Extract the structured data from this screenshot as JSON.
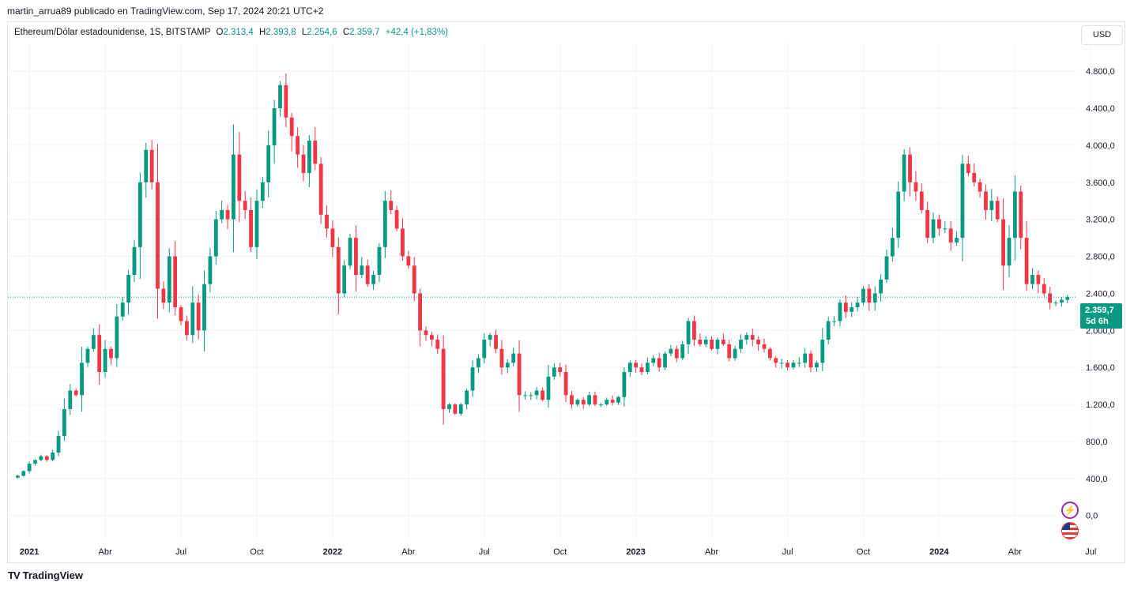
{
  "header": {
    "publisher": "martin_arrua89 publicado en TradingView.com, Sep 17, 2024 20:21 UTC+2"
  },
  "legend": {
    "symbol": "Ethereum/Dólar estadounidense, 1S, BITSTAMP",
    "o_label": "O",
    "o_value": "2.313,4",
    "h_label": "H",
    "h_value": "2.393,8",
    "l_label": "L",
    "l_value": "2.254,6",
    "c_label": "C",
    "c_value": "2.359,7",
    "change": "+42,4 (+1,83%)"
  },
  "currency_button": "USD",
  "last_price": {
    "price": "2.359,7",
    "countdown": "5d 6h",
    "value": 2359.7
  },
  "brand": {
    "name": "TradingView",
    "logo": "TV"
  },
  "icons": [
    "lightning-icon",
    "us-flag-icon"
  ],
  "colors": {
    "up": "#089981",
    "down": "#f23645",
    "grid": "#f0f3fa",
    "text": "#131722"
  },
  "chart_data": {
    "type": "candlestick",
    "timeframe": "1W",
    "ylim": [
      -250,
      5100
    ],
    "y_ticks": [
      0,
      400,
      800,
      1200,
      1600,
      2000,
      2400,
      2800,
      3200,
      3600,
      4000,
      4400,
      4800
    ],
    "y_tick_labels": [
      "0,0",
      "400,0",
      "800,0",
      "1.200,0",
      "1.600,0",
      "2.000,0",
      "2.400,0",
      "2.800,0",
      "3.200,0",
      "3.600,0",
      "4.000,0",
      "4.400,0",
      "4.800,0"
    ],
    "x_ticks": [
      {
        "label": "2021",
        "week": 3,
        "bold": true
      },
      {
        "label": "Abr",
        "week": 16,
        "bold": false
      },
      {
        "label": "Jul",
        "week": 29,
        "bold": false
      },
      {
        "label": "Oct",
        "week": 42,
        "bold": false
      },
      {
        "label": "2022",
        "week": 55,
        "bold": true
      },
      {
        "label": "Abr",
        "week": 68,
        "bold": false
      },
      {
        "label": "Jul",
        "week": 81,
        "bold": false
      },
      {
        "label": "Oct",
        "week": 94,
        "bold": false
      },
      {
        "label": "2023",
        "week": 107,
        "bold": true
      },
      {
        "label": "Abr",
        "week": 120,
        "bold": false
      },
      {
        "label": "Jul",
        "week": 133,
        "bold": false
      },
      {
        "label": "Oct",
        "week": 146,
        "bold": false
      },
      {
        "label": "2024",
        "week": 159,
        "bold": true
      },
      {
        "label": "Abr",
        "week": 172,
        "bold": false
      },
      {
        "label": "Jul",
        "week": 185,
        "bold": false
      }
    ],
    "anchor_closes": [
      [
        0,
        410
      ],
      [
        1,
        430
      ],
      [
        2,
        480
      ],
      [
        3,
        560
      ],
      [
        4,
        600
      ],
      [
        5,
        640
      ],
      [
        6,
        600
      ],
      [
        7,
        680
      ],
      [
        8,
        860
      ],
      [
        9,
        1150
      ],
      [
        10,
        1350
      ],
      [
        11,
        1300
      ],
      [
        12,
        1650
      ],
      [
        13,
        1800
      ],
      [
        14,
        1950
      ],
      [
        15,
        1550
      ],
      [
        16,
        1800
      ],
      [
        17,
        1700
      ],
      [
        18,
        2150
      ],
      [
        19,
        2300
      ],
      [
        20,
        2600
      ],
      [
        21,
        2900
      ],
      [
        22,
        3600
      ],
      [
        23,
        3950
      ],
      [
        24,
        3600
      ],
      [
        25,
        2450
      ],
      [
        26,
        2300
      ],
      [
        27,
        2800
      ],
      [
        28,
        2250
      ],
      [
        29,
        2100
      ],
      [
        30,
        1950
      ],
      [
        31,
        2300
      ],
      [
        32,
        2000
      ],
      [
        33,
        2500
      ],
      [
        34,
        2800
      ],
      [
        35,
        3200
      ],
      [
        36,
        3300
      ],
      [
        37,
        3200
      ],
      [
        38,
        3900
      ],
      [
        39,
        3400
      ],
      [
        40,
        3300
      ],
      [
        41,
        2900
      ],
      [
        42,
        3400
      ],
      [
        43,
        3600
      ],
      [
        44,
        4000
      ],
      [
        45,
        4400
      ],
      [
        46,
        4650
      ],
      [
        47,
        4300
      ],
      [
        48,
        4100
      ],
      [
        49,
        3900
      ],
      [
        50,
        3700
      ],
      [
        51,
        4050
      ],
      [
        52,
        3800
      ],
      [
        53,
        3250
      ],
      [
        54,
        3100
      ],
      [
        55,
        2900
      ],
      [
        56,
        2400
      ],
      [
        57,
        2700
      ],
      [
        58,
        3000
      ],
      [
        59,
        2600
      ],
      [
        60,
        2700
      ],
      [
        61,
        2500
      ],
      [
        62,
        2600
      ],
      [
        63,
        2900
      ],
      [
        64,
        3400
      ],
      [
        65,
        3300
      ],
      [
        66,
        3100
      ],
      [
        67,
        2800
      ],
      [
        68,
        2700
      ],
      [
        69,
        2400
      ],
      [
        70,
        2000
      ],
      [
        71,
        1950
      ],
      [
        72,
        1900
      ],
      [
        73,
        1800
      ],
      [
        74,
        1150
      ],
      [
        75,
        1200
      ],
      [
        76,
        1100
      ],
      [
        77,
        1200
      ],
      [
        78,
        1350
      ],
      [
        79,
        1600
      ],
      [
        80,
        1700
      ],
      [
        81,
        1900
      ],
      [
        82,
        1950
      ],
      [
        83,
        1800
      ],
      [
        84,
        1600
      ],
      [
        85,
        1650
      ],
      [
        86,
        1750
      ],
      [
        87,
        1300
      ],
      [
        88,
        1300
      ],
      [
        89,
        1300
      ],
      [
        90,
        1350
      ],
      [
        91,
        1250
      ],
      [
        92,
        1500
      ],
      [
        93,
        1600
      ],
      [
        94,
        1550
      ],
      [
        95,
        1300
      ],
      [
        96,
        1200
      ],
      [
        97,
        1250
      ],
      [
        98,
        1200
      ],
      [
        99,
        1300
      ],
      [
        100,
        1200
      ],
      [
        101,
        1200
      ],
      [
        102,
        1250
      ],
      [
        103,
        1220
      ],
      [
        104,
        1280
      ],
      [
        105,
        1550
      ],
      [
        106,
        1650
      ],
      [
        107,
        1600
      ],
      [
        108,
        1550
      ],
      [
        109,
        1650
      ],
      [
        110,
        1700
      ],
      [
        111,
        1600
      ],
      [
        112,
        1750
      ],
      [
        113,
        1800
      ],
      [
        114,
        1700
      ],
      [
        115,
        1850
      ],
      [
        116,
        2100
      ],
      [
        117,
        1900
      ],
      [
        118,
        1850
      ],
      [
        119,
        1900
      ],
      [
        120,
        1800
      ],
      [
        121,
        1900
      ],
      [
        122,
        1850
      ],
      [
        123,
        1700
      ],
      [
        124,
        1800
      ],
      [
        125,
        1900
      ],
      [
        126,
        1950
      ],
      [
        127,
        1900
      ],
      [
        128,
        1850
      ],
      [
        129,
        1800
      ],
      [
        130,
        1700
      ],
      [
        131,
        1650
      ],
      [
        132,
        1650
      ],
      [
        133,
        1600
      ],
      [
        134,
        1650
      ],
      [
        135,
        1650
      ],
      [
        136,
        1750
      ],
      [
        137,
        1600
      ],
      [
        138,
        1650
      ],
      [
        139,
        1900
      ],
      [
        140,
        2100
      ],
      [
        141,
        2100
      ],
      [
        142,
        2300
      ],
      [
        143,
        2200
      ],
      [
        144,
        2250
      ],
      [
        145,
        2300
      ],
      [
        146,
        2450
      ],
      [
        147,
        2300
      ],
      [
        148,
        2400
      ],
      [
        149,
        2550
      ],
      [
        150,
        2800
      ],
      [
        151,
        3000
      ],
      [
        152,
        3500
      ],
      [
        153,
        3900
      ],
      [
        154,
        3600
      ],
      [
        155,
        3500
      ],
      [
        156,
        3300
      ],
      [
        157,
        3000
      ],
      [
        158,
        3200
      ],
      [
        159,
        3100
      ],
      [
        160,
        3100
      ],
      [
        161,
        2950
      ],
      [
        162,
        3000
      ],
      [
        163,
        3800
      ],
      [
        164,
        3700
      ],
      [
        165,
        3600
      ],
      [
        166,
        3500
      ],
      [
        167,
        3300
      ],
      [
        168,
        3400
      ],
      [
        169,
        3200
      ],
      [
        170,
        2700
      ],
      [
        171,
        3000
      ],
      [
        172,
        3500
      ],
      [
        173,
        3000
      ],
      [
        174,
        2500
      ],
      [
        175,
        2600
      ],
      [
        176,
        2500
      ],
      [
        177,
        2400
      ],
      [
        178,
        2300
      ],
      [
        179,
        2300
      ],
      [
        180,
        2330
      ],
      [
        181,
        2360
      ]
    ]
  }
}
